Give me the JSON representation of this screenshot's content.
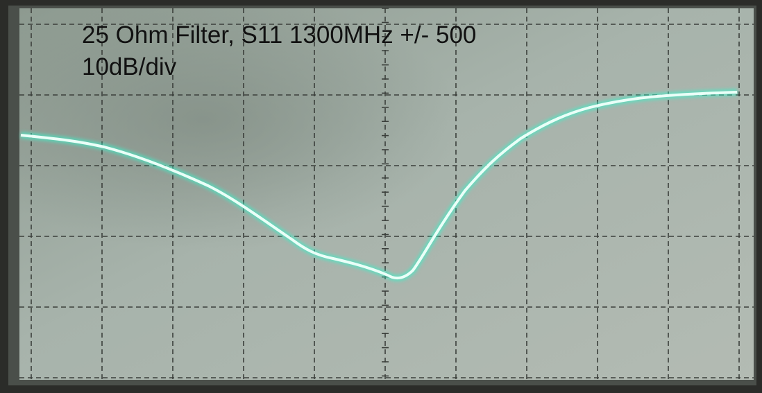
{
  "screen": {
    "title": "25 Ohm Filter, S11 1300MHz +/- 500",
    "scale": "10dB/div"
  }
}
